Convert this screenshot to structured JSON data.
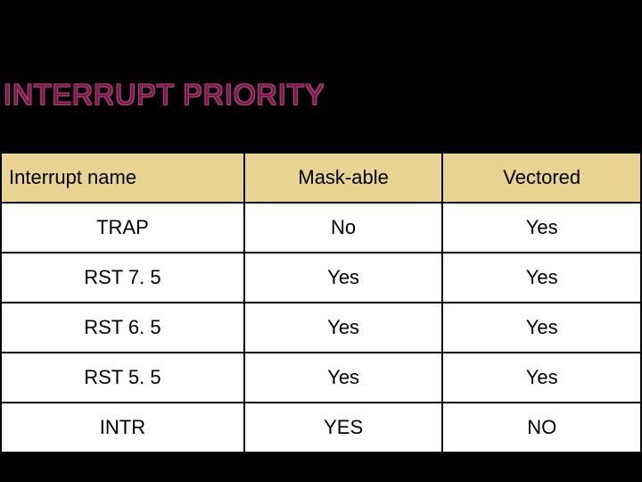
{
  "title": "INTERRUPT PRIORITY",
  "table": {
    "type": "table",
    "background_color": "#ffffff",
    "header_bg": "#e8d393",
    "border_color": "#000000",
    "font_family": "Arial",
    "header_fontsize": 22,
    "cell_fontsize": 22,
    "columns": [
      "Interrupt name",
      "Mask-able",
      "Vectored"
    ],
    "column_alignment": [
      "left",
      "center",
      "center"
    ],
    "column_widths_pct": [
      38,
      31,
      31
    ],
    "rows": [
      [
        "TRAP",
        "No",
        "Yes"
      ],
      [
        "RST 7. 5",
        "Yes",
        "Yes"
      ],
      [
        "RST 6. 5",
        "Yes",
        "Yes"
      ],
      [
        "RST 5. 5",
        "Yes",
        "Yes"
      ],
      [
        "INTR",
        "YES",
        "NO"
      ]
    ]
  },
  "colors": {
    "slide_background": "#000000",
    "title_fill": "#7a1a4a",
    "title_outline": "#b0447a"
  }
}
